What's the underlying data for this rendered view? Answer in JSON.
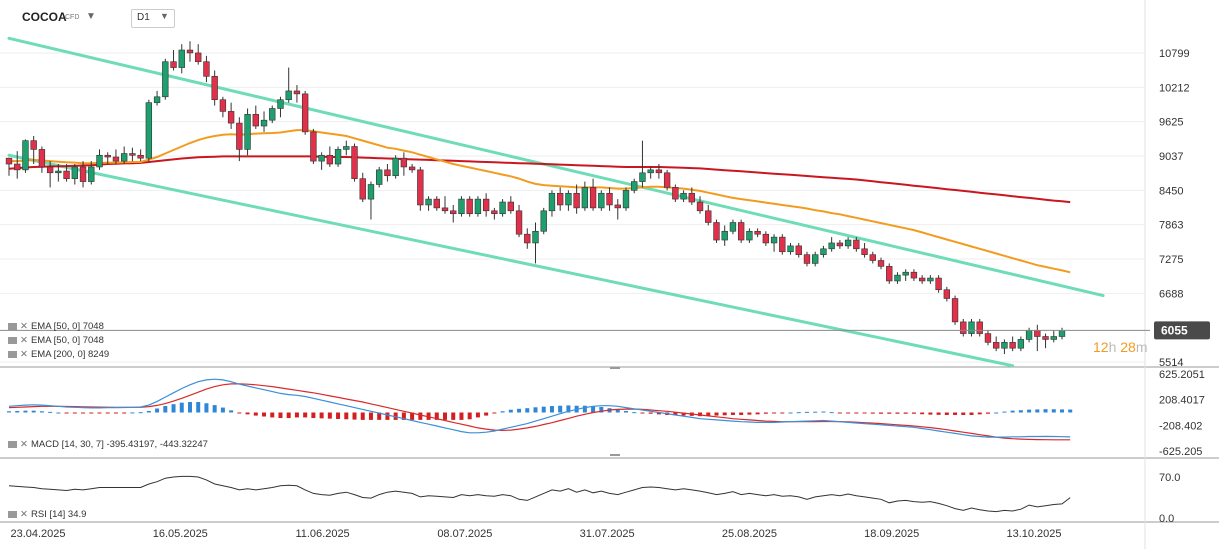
{
  "header": {
    "symbol": "COCOA",
    "symbol_type": "CFD",
    "timeframe": "D1"
  },
  "price_badge": "6055",
  "countdown": {
    "h": "12",
    "h_unit": "h",
    "m": "28",
    "m_unit": "m"
  },
  "legend": {
    "ema1": "EMA [50, 0]  7048",
    "ema2": "EMA [50, 0]  7048",
    "ema3": "EMA [200, 0]  8249",
    "macd": "MACD [14, 30, 7]  -395.43197,  -443.32247",
    "rsi": "RSI [14]  34.9"
  },
  "colors": {
    "up": "#1f9e6e",
    "down": "#e0304a",
    "ema50": "#f39b1e",
    "ema200": "#c8171e",
    "channel": "#6fdcb8",
    "macd_line": "#3a8fd8",
    "signal_line": "#d92a2a",
    "rsi": "#333333",
    "badge": "#4a4a4a"
  },
  "chart_data": {
    "type": "candlestick",
    "title": "COCOA",
    "timeframe": "D1",
    "y_ticks": [
      10799,
      10212,
      9625,
      9037,
      8450,
      7863,
      7275,
      6688,
      5514
    ],
    "x_labels": [
      "23.04.2025",
      "16.05.2025",
      "11.06.2025",
      "08.07.2025",
      "31.07.2025",
      "25.08.2025",
      "18.09.2025",
      "13.10.2025"
    ],
    "last_price": 6055,
    "ohlc": [
      [
        9000,
        9010,
        8700,
        8900
      ],
      [
        8900,
        9120,
        8650,
        8800
      ],
      [
        8800,
        9320,
        8750,
        9300
      ],
      [
        9300,
        9380,
        8900,
        9150
      ],
      [
        9150,
        9200,
        8750,
        8850
      ],
      [
        8850,
        8950,
        8500,
        8750
      ],
      [
        8750,
        8900,
        8600,
        8780
      ],
      [
        8780,
        8900,
        8600,
        8650
      ],
      [
        8650,
        8900,
        8550,
        8850
      ],
      [
        8850,
        8950,
        8500,
        8600
      ],
      [
        8600,
        8950,
        8550,
        8850
      ],
      [
        8850,
        9150,
        8800,
        9050
      ],
      [
        9050,
        9100,
        8900,
        9020
      ],
      [
        9020,
        9150,
        8900,
        8950
      ],
      [
        8950,
        9200,
        8900,
        9080
      ],
      [
        9080,
        9180,
        8950,
        9050
      ],
      [
        9050,
        9150,
        8950,
        9000
      ],
      [
        9000,
        10000,
        8950,
        9950
      ],
      [
        9950,
        10150,
        9900,
        10050
      ],
      [
        10050,
        10700,
        10000,
        10650
      ],
      [
        10650,
        10850,
        10500,
        10550
      ],
      [
        10550,
        10950,
        10450,
        10850
      ],
      [
        10850,
        11000,
        10650,
        10800
      ],
      [
        10800,
        10950,
        10600,
        10650
      ],
      [
        10650,
        10750,
        10300,
        10400
      ],
      [
        10400,
        10500,
        9900,
        10000
      ],
      [
        10000,
        10050,
        9700,
        9800
      ],
      [
        9800,
        9950,
        9500,
        9600
      ],
      [
        9600,
        9700,
        8950,
        9150
      ],
      [
        9150,
        9850,
        9050,
        9750
      ],
      [
        9750,
        9900,
        9500,
        9550
      ],
      [
        9550,
        9800,
        9450,
        9650
      ],
      [
        9650,
        9900,
        9600,
        9850
      ],
      [
        9850,
        10050,
        9700,
        10000
      ],
      [
        10000,
        10550,
        9950,
        10150
      ],
      [
        10150,
        10250,
        9950,
        10100
      ],
      [
        10100,
        10150,
        9400,
        9450
      ],
      [
        9450,
        9500,
        8900,
        8950
      ],
      [
        8950,
        9100,
        8800,
        9050
      ],
      [
        9050,
        9200,
        8850,
        8900
      ],
      [
        8900,
        9200,
        8850,
        9150
      ],
      [
        9150,
        9300,
        9050,
        9200
      ],
      [
        9200,
        9250,
        8600,
        8650
      ],
      [
        8650,
        8750,
        8250,
        8300
      ],
      [
        8300,
        8600,
        7950,
        8550
      ],
      [
        8550,
        8850,
        8500,
        8800
      ],
      [
        8800,
        8900,
        8600,
        8700
      ],
      [
        8700,
        9050,
        8650,
        9000
      ],
      [
        9000,
        9100,
        8700,
        8850
      ],
      [
        8850,
        8900,
        8750,
        8800
      ],
      [
        8800,
        8850,
        8100,
        8200
      ],
      [
        8200,
        8350,
        8100,
        8300
      ],
      [
        8300,
        8350,
        8100,
        8150
      ],
      [
        8150,
        8350,
        8050,
        8100
      ],
      [
        8100,
        8200,
        7900,
        8050
      ],
      [
        8050,
        8350,
        8000,
        8300
      ],
      [
        8300,
        8350,
        8000,
        8050
      ],
      [
        8050,
        8350,
        8000,
        8300
      ],
      [
        8300,
        8400,
        8000,
        8100
      ],
      [
        8100,
        8150,
        7950,
        8050
      ],
      [
        8050,
        8300,
        8000,
        8250
      ],
      [
        8250,
        8350,
        8050,
        8100
      ],
      [
        8100,
        8200,
        7650,
        7700
      ],
      [
        7700,
        7800,
        7450,
        7550
      ],
      [
        7550,
        7900,
        7200,
        7750
      ],
      [
        7750,
        8150,
        7700,
        8100
      ],
      [
        8100,
        8450,
        8000,
        8400
      ],
      [
        8400,
        8500,
        8100,
        8200
      ],
      [
        8200,
        8450,
        8100,
        8400
      ],
      [
        8400,
        8550,
        8050,
        8150
      ],
      [
        8150,
        8600,
        8100,
        8500
      ],
      [
        8500,
        8650,
        8100,
        8150
      ],
      [
        8150,
        8450,
        8100,
        8400
      ],
      [
        8400,
        8500,
        8100,
        8200
      ],
      [
        8200,
        8300,
        7950,
        8150
      ],
      [
        8150,
        8500,
        8100,
        8450
      ],
      [
        8450,
        8650,
        8400,
        8600
      ],
      [
        8600,
        9300,
        8500,
        8750
      ],
      [
        8750,
        8850,
        8650,
        8800
      ],
      [
        8800,
        8900,
        8650,
        8750
      ],
      [
        8750,
        8800,
        8450,
        8500
      ],
      [
        8500,
        8550,
        8250,
        8300
      ],
      [
        8300,
        8450,
        8250,
        8400
      ],
      [
        8400,
        8500,
        8200,
        8250
      ],
      [
        8250,
        8350,
        8050,
        8100
      ],
      [
        8100,
        8200,
        7850,
        7900
      ],
      [
        7900,
        7950,
        7550,
        7600
      ],
      [
        7600,
        7850,
        7500,
        7750
      ],
      [
        7750,
        7950,
        7700,
        7900
      ],
      [
        7900,
        7950,
        7550,
        7600
      ],
      [
        7600,
        7800,
        7550,
        7750
      ],
      [
        7750,
        7800,
        7650,
        7700
      ],
      [
        7700,
        7750,
        7500,
        7550
      ],
      [
        7550,
        7700,
        7400,
        7650
      ],
      [
        7650,
        7700,
        7350,
        7400
      ],
      [
        7400,
        7550,
        7350,
        7500
      ],
      [
        7500,
        7550,
        7300,
        7350
      ],
      [
        7350,
        7400,
        7150,
        7200
      ],
      [
        7200,
        7400,
        7150,
        7350
      ],
      [
        7350,
        7500,
        7300,
        7450
      ],
      [
        7450,
        7650,
        7400,
        7550
      ],
      [
        7550,
        7600,
        7450,
        7500
      ],
      [
        7500,
        7650,
        7450,
        7600
      ],
      [
        7600,
        7650,
        7400,
        7450
      ],
      [
        7450,
        7550,
        7300,
        7350
      ],
      [
        7350,
        7400,
        7200,
        7250
      ],
      [
        7250,
        7300,
        7100,
        7150
      ],
      [
        7150,
        7200,
        6850,
        6900
      ],
      [
        6900,
        7050,
        6850,
        7000
      ],
      [
        7000,
        7100,
        6900,
        7050
      ],
      [
        7050,
        7100,
        6900,
        6950
      ],
      [
        6950,
        7000,
        6850,
        6900
      ],
      [
        6900,
        7000,
        6850,
        6950
      ],
      [
        6950,
        7000,
        6700,
        6750
      ],
      [
        6750,
        6800,
        6550,
        6600
      ],
      [
        6600,
        6650,
        6150,
        6200
      ],
      [
        6200,
        6250,
        5950,
        6000
      ],
      [
        6000,
        6250,
        5950,
        6200
      ],
      [
        6200,
        6250,
        5950,
        6000
      ],
      [
        6000,
        6050,
        5800,
        5850
      ],
      [
        5850,
        5950,
        5700,
        5750
      ],
      [
        5750,
        5900,
        5650,
        5850
      ],
      [
        5850,
        5950,
        5700,
        5750
      ],
      [
        5750,
        5950,
        5700,
        5900
      ],
      [
        5900,
        6100,
        5850,
        6050
      ],
      [
        6050,
        6150,
        5700,
        5950
      ],
      [
        5950,
        6000,
        5750,
        5900
      ],
      [
        5900,
        6050,
        5850,
        5950
      ],
      [
        5950,
        6100,
        5900,
        6055
      ]
    ],
    "ema50": [
      8950,
      8950,
      8960,
      8970,
      8960,
      8950,
      8940,
      8930,
      8925,
      8915,
      8915,
      8920,
      8925,
      8925,
      8930,
      8935,
      8935,
      8975,
      9020,
      9080,
      9140,
      9200,
      9260,
      9310,
      9350,
      9380,
      9400,
      9410,
      9400,
      9410,
      9420,
      9425,
      9430,
      9440,
      9460,
      9480,
      9480,
      9460,
      9440,
      9420,
      9400,
      9380,
      9340,
      9300,
      9260,
      9220,
      9180,
      9160,
      9130,
      9100,
      9060,
      9020,
      8980,
      8940,
      8900,
      8870,
      8840,
      8810,
      8780,
      8750,
      8720,
      8690,
      8650,
      8600,
      8560,
      8540,
      8530,
      8520,
      8510,
      8500,
      8500,
      8500,
      8500,
      8490,
      8480,
      8480,
      8490,
      8500,
      8510,
      8510,
      8500,
      8490,
      8480,
      8460,
      8440,
      8410,
      8380,
      8350,
      8320,
      8300,
      8280,
      8260,
      8240,
      8220,
      8200,
      8180,
      8160,
      8140,
      8110,
      8090,
      8060,
      8040,
      8010,
      7980,
      7950,
      7920,
      7890,
      7860,
      7830,
      7800,
      7770,
      7730,
      7690,
      7650,
      7610,
      7570,
      7530,
      7490,
      7450,
      7410,
      7370,
      7330,
      7290,
      7250,
      7210,
      7170,
      7140,
      7110,
      7080,
      7048
    ],
    "ema200": [
      8820,
      8830,
      8840,
      8850,
      8855,
      8860,
      8860,
      8865,
      8870,
      8875,
      8880,
      8890,
      8900,
      8905,
      8910,
      8915,
      8920,
      8935,
      8950,
      8965,
      8980,
      8995,
      9005,
      9015,
      9020,
      9025,
      9030,
      9030,
      9030,
      9030,
      9030,
      9030,
      9030,
      9030,
      9030,
      9030,
      9030,
      9030,
      9025,
      9020,
      9020,
      9020,
      9015,
      9010,
      9005,
      9000,
      8995,
      8990,
      8985,
      8980,
      8975,
      8970,
      8965,
      8960,
      8955,
      8950,
      8945,
      8940,
      8935,
      8930,
      8925,
      8920,
      8915,
      8910,
      8905,
      8900,
      8895,
      8890,
      8885,
      8880,
      8875,
      8870,
      8865,
      8860,
      8855,
      8850,
      8850,
      8850,
      8850,
      8850,
      8845,
      8840,
      8835,
      8830,
      8825,
      8815,
      8805,
      8795,
      8785,
      8775,
      8765,
      8755,
      8745,
      8735,
      8725,
      8715,
      8705,
      8695,
      8685,
      8675,
      8665,
      8655,
      8645,
      8635,
      8620,
      8605,
      8590,
      8575,
      8560,
      8545,
      8530,
      8515,
      8500,
      8485,
      8470,
      8455,
      8440,
      8425,
      8410,
      8395,
      8380,
      8365,
      8350,
      8335,
      8320,
      8305,
      8290,
      8275,
      8262,
      8249
    ],
    "channel_upper": [
      [
        0,
        11050
      ],
      [
        133,
        6650
      ]
    ],
    "channel_lower": [
      [
        0,
        9050
      ],
      [
        122,
        5450
      ]
    ],
    "macd": {
      "y_ticks": [
        625.2051,
        208.4017,
        -208.402,
        -625.205
      ],
      "macd_line": [
        100,
        110,
        120,
        125,
        120,
        110,
        100,
        90,
        85,
        80,
        75,
        75,
        78,
        80,
        82,
        85,
        90,
        120,
        180,
        250,
        320,
        390,
        450,
        500,
        530,
        540,
        530,
        500,
        460,
        430,
        400,
        370,
        340,
        310,
        290,
        280,
        260,
        230,
        200,
        170,
        140,
        110,
        80,
        50,
        20,
        -10,
        -40,
        -70,
        -100,
        -130,
        -160,
        -190,
        -220,
        -250,
        -280,
        -310,
        -330,
        -330,
        -320,
        -300,
        -270,
        -240,
        -210,
        -180,
        -140,
        -100,
        -60,
        -20,
        20,
        50,
        80,
        100,
        110,
        110,
        100,
        80,
        60,
        40,
        20,
        0,
        -20,
        -40,
        -60,
        -80,
        -100,
        -110,
        -120,
        -130,
        -140,
        -150,
        -155,
        -160,
        -160,
        -160,
        -155,
        -150,
        -145,
        -140,
        -135,
        -130,
        -140,
        -150,
        -160,
        -170,
        -180,
        -190,
        -200,
        -210,
        -220,
        -230,
        -240,
        -260,
        -280,
        -300,
        -320,
        -340,
        -360,
        -380,
        -390,
        -400,
        -400,
        -400,
        -395,
        -395,
        -390,
        -390,
        -388,
        -390,
        -393,
        -395.43
      ],
      "signal_line": [
        80,
        85,
        90,
        95,
        100,
        100,
        100,
        98,
        95,
        92,
        90,
        88,
        86,
        85,
        84,
        84,
        85,
        95,
        115,
        145,
        185,
        230,
        280,
        330,
        380,
        420,
        450,
        465,
        465,
        460,
        450,
        435,
        420,
        400,
        380,
        360,
        340,
        320,
        295,
        270,
        245,
        220,
        195,
        170,
        140,
        110,
        80,
        50,
        20,
        -10,
        -40,
        -70,
        -100,
        -130,
        -160,
        -190,
        -220,
        -250,
        -270,
        -285,
        -290,
        -285,
        -270,
        -250,
        -225,
        -195,
        -165,
        -130,
        -95,
        -60,
        -30,
        0,
        20,
        40,
        50,
        55,
        55,
        50,
        40,
        30,
        20,
        5,
        -10,
        -25,
        -40,
        -55,
        -70,
        -85,
        -100,
        -110,
        -120,
        -130,
        -140,
        -145,
        -150,
        -150,
        -150,
        -150,
        -148,
        -146,
        -146,
        -148,
        -152,
        -158,
        -165,
        -172,
        -180,
        -190,
        -200,
        -210,
        -220,
        -232,
        -246,
        -262,
        -280,
        -300,
        -320,
        -340,
        -360,
        -380,
        -400,
        -415,
        -425,
        -432,
        -437,
        -440,
        -442,
        -443,
        -443,
        -443.32
      ]
    },
    "rsi": {
      "y_ticks": [
        70.0,
        0.0
      ],
      "values": [
        55,
        54,
        53,
        52,
        50,
        49,
        48,
        47,
        49,
        48,
        50,
        52,
        52,
        52,
        52,
        52,
        52,
        58,
        62,
        68,
        70,
        71,
        71,
        70,
        65,
        58,
        55,
        52,
        48,
        50,
        48,
        50,
        52,
        55,
        56,
        55,
        48,
        42,
        40,
        39,
        42,
        44,
        40,
        35,
        34,
        40,
        44,
        46,
        44,
        42,
        36,
        38,
        37,
        36,
        35,
        40,
        38,
        40,
        38,
        37,
        40,
        38,
        32,
        30,
        36,
        42,
        48,
        46,
        50,
        44,
        48,
        43,
        46,
        42,
        40,
        44,
        48,
        52,
        53,
        52,
        50,
        48,
        50,
        48,
        46,
        43,
        40,
        42,
        45,
        40,
        42,
        40,
        38,
        40,
        37,
        38,
        36,
        32,
        36,
        38,
        40,
        38,
        41,
        38,
        36,
        34,
        32,
        26,
        29,
        30,
        28,
        27,
        28,
        25,
        21,
        16,
        13,
        17,
        14,
        12,
        11,
        13,
        12,
        15,
        22,
        19,
        21,
        23,
        24,
        34.9
      ]
    }
  }
}
